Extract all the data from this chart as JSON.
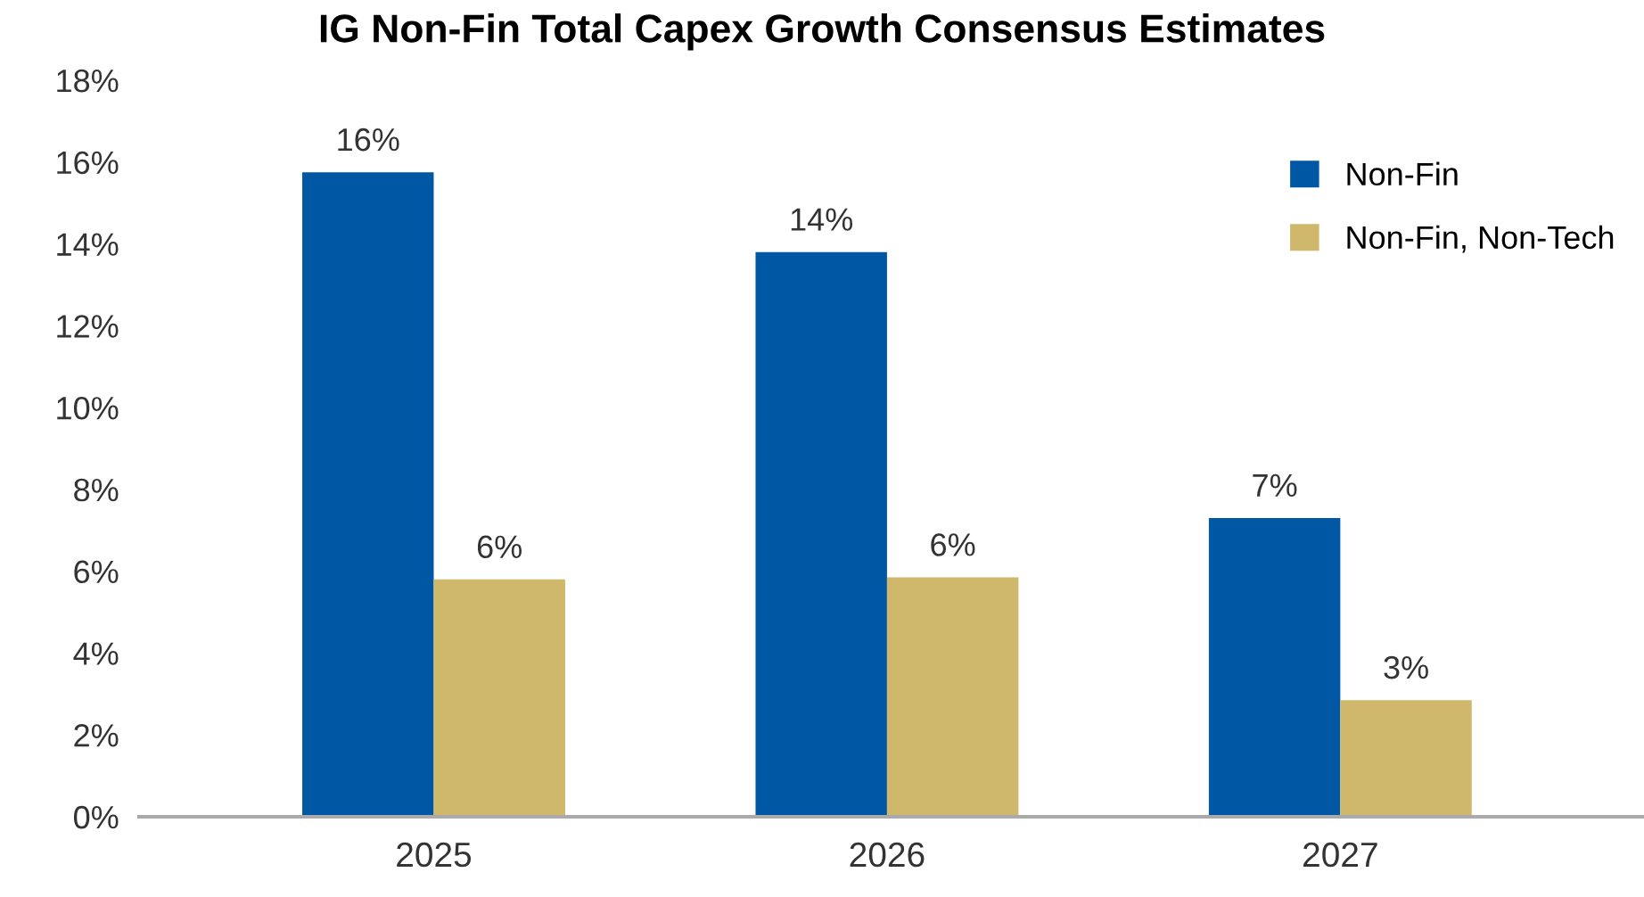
{
  "chart_data": {
    "type": "bar",
    "title": "IG Non-Fin Total Capex Growth Consensus Estimates",
    "categories": [
      "2025",
      "2026",
      "2027"
    ],
    "series": [
      {
        "name": "Non-Fin",
        "color": "#0057a3",
        "values": [
          15.75,
          13.8,
          7.3
        ],
        "value_labels": [
          "16%",
          "14%",
          "7%"
        ]
      },
      {
        "name": "Non-Fin, Non-Tech",
        "color": "#cfb86b",
        "values": [
          5.8,
          5.85,
          2.85
        ],
        "value_labels": [
          "6%",
          "6%",
          "3%"
        ]
      }
    ],
    "ylim": [
      0,
      18
    ],
    "yticks": [
      {
        "value": 0,
        "label": "0%"
      },
      {
        "value": 2,
        "label": "2%"
      },
      {
        "value": 4,
        "label": "4%"
      },
      {
        "value": 6,
        "label": "6%"
      },
      {
        "value": 8,
        "label": "8%"
      },
      {
        "value": 10,
        "label": "10%"
      },
      {
        "value": 12,
        "label": "12%"
      },
      {
        "value": 14,
        "label": "14%"
      },
      {
        "value": 16,
        "label": "16%"
      },
      {
        "value": 18,
        "label": "18%"
      }
    ],
    "grid": false,
    "legend": "top right"
  }
}
